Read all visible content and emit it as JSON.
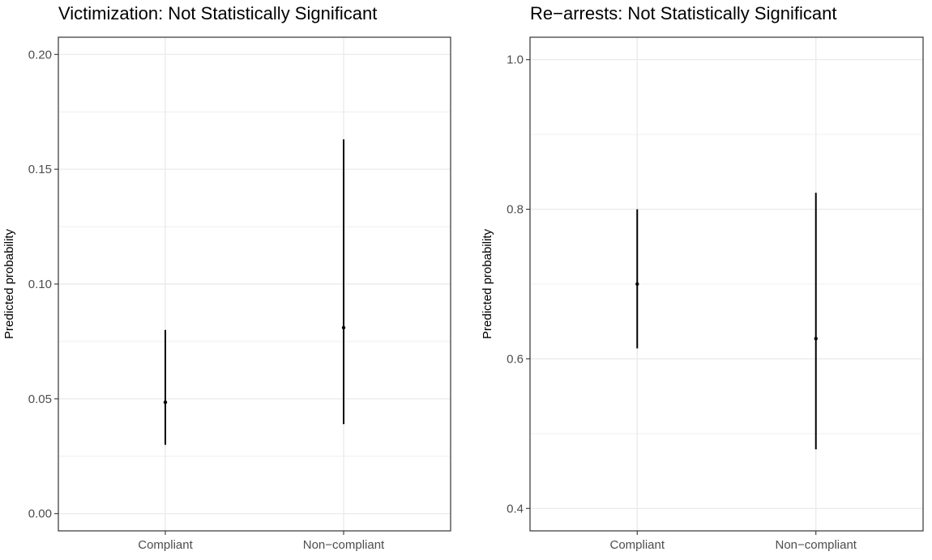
{
  "chart_data": [
    {
      "type": "errorbar",
      "title": "Victimization: Not Statistically Significant",
      "xlabel": "",
      "ylabel": "Predicted probability",
      "categories": [
        "Compliant",
        "Non−compliant"
      ],
      "estimates": [
        0.0485,
        0.081
      ],
      "lower": [
        0.03,
        0.039
      ],
      "upper": [
        0.08,
        0.163
      ],
      "ylim": [
        -0.0075,
        0.2075
      ],
      "yticks": [
        0.0,
        0.05,
        0.1,
        0.15,
        0.2
      ],
      "ytick_labels": [
        "0.00",
        "0.05",
        "0.10",
        "0.15",
        "0.20"
      ],
      "grid": true
    },
    {
      "type": "errorbar",
      "title": "Re−arrests: Not Statistically Significant",
      "xlabel": "",
      "ylabel": "Predicted probability",
      "categories": [
        "Compliant",
        "Non−compliant"
      ],
      "estimates": [
        0.7,
        0.627
      ],
      "lower": [
        0.614,
        0.479
      ],
      "upper": [
        0.8,
        0.822
      ],
      "ylim": [
        0.37,
        1.03
      ],
      "yticks": [
        0.4,
        0.6,
        0.8,
        1.0
      ],
      "ytick_labels": [
        "0.4",
        "0.6",
        "0.8",
        "1.0"
      ],
      "grid": true
    }
  ],
  "colors": {
    "background": "#ffffff",
    "grid": "#ebebeb",
    "border": "#333333",
    "mark": "#000000",
    "tick_text": "#4d4d4d"
  }
}
